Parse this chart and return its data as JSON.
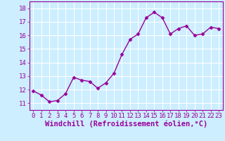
{
  "x": [
    0,
    1,
    2,
    3,
    4,
    5,
    6,
    7,
    8,
    9,
    10,
    11,
    12,
    13,
    14,
    15,
    16,
    17,
    18,
    19,
    20,
    21,
    22,
    23
  ],
  "y": [
    11.9,
    11.6,
    11.1,
    11.2,
    11.7,
    12.9,
    12.7,
    12.6,
    12.1,
    12.5,
    13.2,
    14.6,
    15.7,
    16.1,
    17.3,
    17.7,
    17.3,
    16.1,
    16.5,
    16.7,
    16.0,
    16.1,
    16.6,
    16.5
  ],
  "line_color": "#990099",
  "marker": "D",
  "marker_size": 2.5,
  "bg_color": "#cceeff",
  "grid_color": "#ffffff",
  "xlabel": "Windchill (Refroidissement éolien,°C)",
  "xlim": [
    -0.5,
    23.5
  ],
  "ylim": [
    10.5,
    18.5
  ],
  "yticks": [
    11,
    12,
    13,
    14,
    15,
    16,
    17,
    18
  ],
  "xticks": [
    0,
    1,
    2,
    3,
    4,
    5,
    6,
    7,
    8,
    9,
    10,
    11,
    12,
    13,
    14,
    15,
    16,
    17,
    18,
    19,
    20,
    21,
    22,
    23
  ],
  "tick_color": "#990099",
  "label_color": "#990099",
  "font_size": 6.5,
  "xlabel_font_size": 7.5,
  "spine_color": "#990099",
  "linewidth": 1.0
}
